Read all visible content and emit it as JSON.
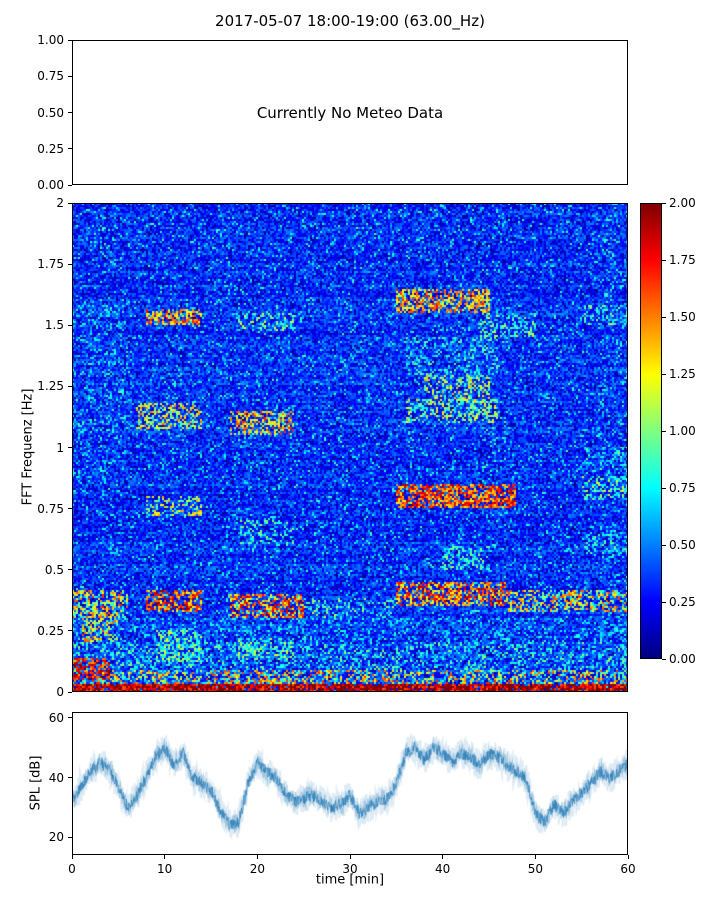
{
  "title": "2017-05-07 18:00-19:00 (63.00_Hz)",
  "panels": {
    "meteo": {
      "message": "Currently No Meteo Data",
      "ytick_values": [
        0,
        0.25,
        0.5,
        0.75,
        1
      ],
      "ytick_labels": [
        "0.00",
        "0.25",
        "0.50",
        "0.75",
        "1.00"
      ],
      "ylim": [
        0,
        1
      ]
    },
    "spectrogram": {
      "ylabel": "FFT Frequenz [Hz]",
      "ytick_values": [
        0,
        0.25,
        0.5,
        0.75,
        1,
        1.25,
        1.5,
        1.75,
        2
      ],
      "ytick_labels": [
        "0",
        "0.25",
        "0.5",
        "0.75",
        "1",
        "1.25",
        "1.5",
        "1.75",
        "2"
      ],
      "ylim": [
        0,
        2
      ],
      "xlim": [
        0,
        60
      ]
    },
    "colorbar": {
      "tick_values": [
        0,
        0.25,
        0.5,
        0.75,
        1,
        1.25,
        1.5,
        1.75,
        2
      ],
      "tick_labels": [
        "0.00",
        "0.25",
        "0.50",
        "0.75",
        "1.00",
        "1.25",
        "1.50",
        "1.75",
        "2.00"
      ],
      "vmin": 0,
      "vmax": 2,
      "colormap": "jet"
    },
    "spl": {
      "ylabel": "SPL [dB]",
      "xlabel": "time [min]",
      "ytick_values": [
        20,
        40,
        60
      ],
      "ytick_labels": [
        "20",
        "40",
        "60"
      ],
      "xtick_values": [
        0,
        10,
        20,
        30,
        40,
        50,
        60
      ],
      "xtick_labels": [
        "0",
        "10",
        "20",
        "30",
        "40",
        "50",
        "60"
      ],
      "ylim": [
        14,
        62
      ],
      "xlim": [
        0,
        60
      ],
      "line_color": "#1f77b4"
    }
  },
  "chart_data": [
    {
      "type": "table",
      "panel": "top",
      "text": "Currently No Meteo Data",
      "ylim": [
        0,
        1
      ],
      "note": "empty meteo panel, no data plotted"
    },
    {
      "type": "heatmap",
      "panel": "middle",
      "ylabel": "FFT Frequenz [Hz]",
      "xlim": [
        0,
        60
      ],
      "ylim": [
        0,
        2
      ],
      "vmin": 0,
      "vmax": 2,
      "colormap": "jet",
      "background_level_range": [
        0.18,
        0.5
      ],
      "hotspots": [
        {
          "t": [
            0,
            60
          ],
          "f": [
            0,
            0.035
          ],
          "v": 1.9,
          "s": 0.35,
          "p": 0.9
        },
        {
          "t": [
            0,
            60
          ],
          "f": [
            0.035,
            0.09
          ],
          "v": 1.15,
          "s": 0.55,
          "p": 0.4
        },
        {
          "t": [
            0,
            60
          ],
          "f": [
            0.09,
            0.2
          ],
          "v": 0.7,
          "s": 0.35,
          "p": 0.3
        },
        {
          "t": [
            0,
            60
          ],
          "f": [
            0.2,
            0.3
          ],
          "v": 0.55,
          "s": 0.3,
          "p": 0.22
        },
        {
          "t": [
            0,
            4
          ],
          "f": [
            0.05,
            0.14
          ],
          "v": 1.7,
          "s": 0.3,
          "p": 0.6
        },
        {
          "t": [
            1,
            5
          ],
          "f": [
            0.2,
            0.33
          ],
          "v": 1.2,
          "s": 0.4,
          "p": 0.45
        },
        {
          "t": [
            0,
            6
          ],
          "f": [
            0.3,
            0.42
          ],
          "v": 1.2,
          "s": 0.5,
          "p": 0.5
        },
        {
          "t": [
            8,
            14
          ],
          "f": [
            0.33,
            0.42
          ],
          "v": 1.6,
          "s": 0.4,
          "p": 0.6
        },
        {
          "t": [
            9,
            14
          ],
          "f": [
            0.12,
            0.25
          ],
          "v": 0.9,
          "s": 0.35,
          "p": 0.45
        },
        {
          "t": [
            17,
            25
          ],
          "f": [
            0.3,
            0.4
          ],
          "v": 1.5,
          "s": 0.45,
          "p": 0.55
        },
        {
          "t": [
            18,
            24
          ],
          "f": [
            0.13,
            0.22
          ],
          "v": 0.9,
          "s": 0.35,
          "p": 0.4
        },
        {
          "t": [
            25,
            35
          ],
          "f": [
            0.3,
            0.38
          ],
          "v": 0.8,
          "s": 0.35,
          "p": 0.3
        },
        {
          "t": [
            35,
            47
          ],
          "f": [
            0.35,
            0.45
          ],
          "v": 1.5,
          "s": 0.45,
          "p": 0.6
        },
        {
          "t": [
            47,
            60
          ],
          "f": [
            0.33,
            0.42
          ],
          "v": 1.2,
          "s": 0.45,
          "p": 0.45
        },
        {
          "t": [
            8,
            14
          ],
          "f": [
            0.72,
            0.8
          ],
          "v": 1.1,
          "s": 0.35,
          "p": 0.4
        },
        {
          "t": [
            35,
            48
          ],
          "f": [
            0.75,
            0.85
          ],
          "v": 1.6,
          "s": 0.35,
          "p": 0.65
        },
        {
          "t": [
            55,
            60
          ],
          "f": [
            0.78,
            0.88
          ],
          "v": 0.9,
          "s": 0.3,
          "p": 0.35
        },
        {
          "t": [
            18,
            24
          ],
          "f": [
            0.6,
            0.7
          ],
          "v": 0.8,
          "s": 0.3,
          "p": 0.3
        },
        {
          "t": [
            7,
            14
          ],
          "f": [
            1.08,
            1.18
          ],
          "v": 1.2,
          "s": 0.35,
          "p": 0.45
        },
        {
          "t": [
            17,
            24
          ],
          "f": [
            1.05,
            1.15
          ],
          "v": 1.3,
          "s": 0.4,
          "p": 0.5
        },
        {
          "t": [
            36,
            46
          ],
          "f": [
            1.1,
            1.2
          ],
          "v": 1.0,
          "s": 0.35,
          "p": 0.4
        },
        {
          "t": [
            38,
            45
          ],
          "f": [
            1.2,
            1.3
          ],
          "v": 1.1,
          "s": 0.35,
          "p": 0.35
        },
        {
          "t": [
            36,
            46
          ],
          "f": [
            1.28,
            1.45
          ],
          "v": 0.7,
          "s": 0.3,
          "p": 0.3
        },
        {
          "t": [
            8,
            14
          ],
          "f": [
            1.5,
            1.57
          ],
          "v": 1.4,
          "s": 0.35,
          "p": 0.55
        },
        {
          "t": [
            18,
            24
          ],
          "f": [
            1.48,
            1.55
          ],
          "v": 0.9,
          "s": 0.35,
          "p": 0.35
        },
        {
          "t": [
            35,
            45
          ],
          "f": [
            1.55,
            1.65
          ],
          "v": 1.4,
          "s": 0.35,
          "p": 0.55
        },
        {
          "t": [
            44,
            50
          ],
          "f": [
            1.45,
            1.55
          ],
          "v": 0.9,
          "s": 0.3,
          "p": 0.3
        },
        {
          "t": [
            55,
            60
          ],
          "f": [
            1.5,
            1.58
          ],
          "v": 0.8,
          "s": 0.3,
          "p": 0.3
        },
        {
          "t": [
            55,
            60
          ],
          "f": [
            0.55,
            0.65
          ],
          "v": 0.7,
          "s": 0.3,
          "p": 0.25
        },
        {
          "t": [
            55,
            60
          ],
          "f": [
            0.9,
            1.0
          ],
          "v": 0.7,
          "s": 0.3,
          "p": 0.25
        },
        {
          "t": [
            40,
            45
          ],
          "f": [
            0.5,
            0.6
          ],
          "v": 0.8,
          "s": 0.3,
          "p": 0.3
        },
        {
          "t": [
            0,
            6
          ],
          "f": [
            0.8,
            1.6
          ],
          "v": 0.6,
          "s": 0.25,
          "p": 0.15
        },
        {
          "t": [
            57,
            60
          ],
          "f": [
            0,
            2
          ],
          "v": 0.55,
          "s": 0.3,
          "p": 0.12
        }
      ]
    },
    {
      "type": "line",
      "panel": "bottom",
      "ylabel": "SPL [dB]",
      "xlabel": "time [min]",
      "xlim": [
        0,
        60
      ],
      "ylim": [
        14,
        62
      ],
      "noise_band_db": 4,
      "envelope": [
        [
          0,
          32
        ],
        [
          1,
          37
        ],
        [
          2,
          42
        ],
        [
          3,
          45
        ],
        [
          4,
          43
        ],
        [
          5,
          37
        ],
        [
          6,
          30
        ],
        [
          7,
          34
        ],
        [
          8,
          40
        ],
        [
          9,
          47
        ],
        [
          10,
          50
        ],
        [
          11,
          44
        ],
        [
          12,
          48
        ],
        [
          13,
          40
        ],
        [
          14,
          38
        ],
        [
          15,
          36
        ],
        [
          16,
          29
        ],
        [
          17,
          24
        ],
        [
          18,
          25
        ],
        [
          19,
          38
        ],
        [
          20,
          45
        ],
        [
          21,
          42
        ],
        [
          22,
          40
        ],
        [
          23,
          35
        ],
        [
          24,
          32
        ],
        [
          25,
          33
        ],
        [
          26,
          34
        ],
        [
          27,
          32
        ],
        [
          28,
          30
        ],
        [
          29,
          31
        ],
        [
          30,
          34
        ],
        [
          31,
          28
        ],
        [
          32,
          30
        ],
        [
          33,
          32
        ],
        [
          34,
          33
        ],
        [
          35,
          38
        ],
        [
          36,
          48
        ],
        [
          37,
          50
        ],
        [
          38,
          46
        ],
        [
          39,
          50
        ],
        [
          40,
          48
        ],
        [
          41,
          45
        ],
        [
          42,
          48
        ],
        [
          43,
          47
        ],
        [
          44,
          44
        ],
        [
          45,
          48
        ],
        [
          46,
          47
        ],
        [
          47,
          44
        ],
        [
          48,
          42
        ],
        [
          49,
          40
        ],
        [
          50,
          28
        ],
        [
          51,
          25
        ],
        [
          52,
          31
        ],
        [
          53,
          28
        ],
        [
          54,
          32
        ],
        [
          55,
          35
        ],
        [
          56,
          38
        ],
        [
          57,
          42
        ],
        [
          58,
          40
        ],
        [
          59,
          42
        ],
        [
          60,
          45
        ]
      ]
    }
  ]
}
